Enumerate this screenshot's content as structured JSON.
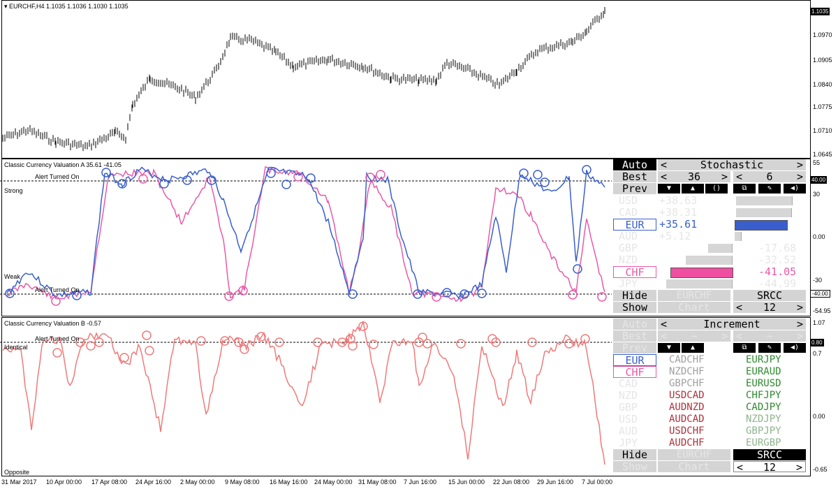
{
  "main": {
    "symbol": "EURCHF,H4  1.1035 1.1036 1.1030 1.1035",
    "axis": [
      "1.1035",
      "1.0970",
      "1.0905",
      "1.0840",
      "1.0775",
      "1.0710",
      "1.0645"
    ],
    "price_tag": "1.1035"
  },
  "ind_a": {
    "title": "Classic Currency Valuation A 35.61 -41.05",
    "alert_top": "Alert Turned On",
    "alert_bottom": "Alert Turned On",
    "strong": "Strong",
    "weak": "Weak",
    "axis": [
      "55",
      "30",
      "0.00",
      "-30",
      "-54.95"
    ],
    "tag_top": "40.00",
    "tag_bottom": "-40.00",
    "panel": {
      "auto": "Auto",
      "mode": "Stochastic",
      "best": "Best",
      "best_val": "36",
      "best_val2": "6",
      "prev": "Prev",
      "currencies": [
        {
          "name": "USD",
          "value": "+38.63"
        },
        {
          "name": "CAD",
          "value": "+38.31"
        },
        {
          "name": "EUR",
          "value": "+35.61"
        },
        {
          "name": "AUD",
          "value": "+5.12"
        },
        {
          "name": "GBP",
          "value": "-17.68"
        },
        {
          "name": "NZD",
          "value": "-32.52"
        },
        {
          "name": "CHF",
          "value": "-41.05"
        },
        {
          "name": "JPY",
          "value": "-44.99"
        }
      ],
      "hide": "Hide",
      "show": "Show",
      "pair": "EURCHF",
      "chart": "Chart",
      "srcc": "SRCC",
      "period": "12"
    }
  },
  "ind_b": {
    "title": "Classic Currency Valuation B -0.57",
    "alert": "Alert Turned On",
    "identical": "Identical",
    "opposite": "Opposite",
    "axis": [
      "1.07",
      "0.7",
      "0.00",
      "-0.65"
    ],
    "tag": "0.80",
    "panel": {
      "auto": "Auto",
      "mode": "Increment",
      "best": "Best",
      "tilde": "~",
      "prev": "Prev",
      "col1": [
        "EUR",
        "CHF",
        "CAD",
        "NZD",
        "GBP",
        "USD",
        "AUD",
        "JPY"
      ],
      "col2": [
        "CADCHF",
        "NZDCHF",
        "GBPCHF",
        "USDCAD",
        "AUDNZD",
        "AUDCAD",
        "USDCHF",
        "AUDCHF"
      ],
      "col3": [
        "EURJPY",
        "EURAUD",
        "EURUSD",
        "CHFJPY",
        "CADJPY",
        "NZDJPY",
        "GBPJPY",
        "EURGBP"
      ],
      "hide": "Hide",
      "show": "Show",
      "pair": "EURCHF",
      "chart": "Chart",
      "srcc": "SRCC",
      "period": "12"
    }
  },
  "xaxis": [
    "31 Mar 2017",
    "10 Apr 00:00",
    "17 Apr 08:00",
    "24 Apr 16:00",
    "2 May 00:00",
    "9 May 08:00",
    "16 May 16:00",
    "24 May 00:00",
    "31 May 08:00",
    "7 Jun 16:00",
    "15 Jun 00:00",
    "22 Jun 08:00",
    "29 Jun 16:00",
    "7 Jul 00:00"
  ]
}
